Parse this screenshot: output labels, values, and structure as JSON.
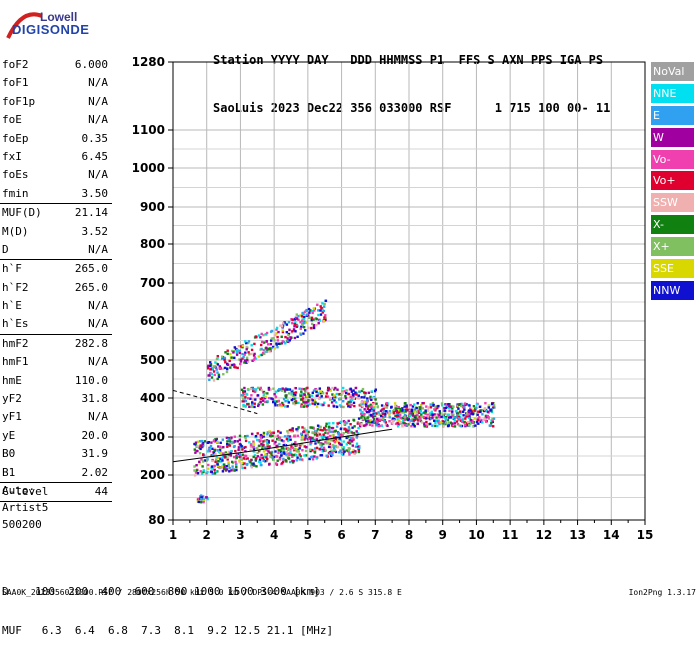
{
  "logo": {
    "line1": "Lowell",
    "line2": "DIGISONDE"
  },
  "header": {
    "line1": "Station YYYY DAY   DDD HHMMSS P1  FFS S AXN PPS IGA PS",
    "line2": "SaoLuis 2023 Dec22 356 033000 RSF      1 715 100 00- 11"
  },
  "params": [
    {
      "name": "foF2",
      "value": "6.000"
    },
    {
      "name": "foF1",
      "value": "N/A"
    },
    {
      "name": "foF1p",
      "value": "N/A"
    },
    {
      "name": "foE",
      "value": "N/A"
    },
    {
      "name": "foEp",
      "value": "0.35"
    },
    {
      "name": "fxI",
      "value": "6.45"
    },
    {
      "name": "foEs",
      "value": "N/A"
    },
    {
      "name": "fmin",
      "value": "3.50",
      "sep": true
    },
    {
      "name": "MUF(D)",
      "value": "21.14"
    },
    {
      "name": "M(D)",
      "value": "3.52"
    },
    {
      "name": "D",
      "value": "N/A",
      "sep": true
    },
    {
      "name": "h`F",
      "value": "265.0"
    },
    {
      "name": "h`F2",
      "value": "265.0"
    },
    {
      "name": "h`E",
      "value": "N/A"
    },
    {
      "name": "h`Es",
      "value": "N/A",
      "sep": true
    },
    {
      "name": "hmF2",
      "value": "282.8"
    },
    {
      "name": "hmF1",
      "value": "N/A"
    },
    {
      "name": "hmE",
      "value": "110.0"
    },
    {
      "name": "yF2",
      "value": "31.8"
    },
    {
      "name": "yF1",
      "value": "N/A"
    },
    {
      "name": "yE",
      "value": "20.0"
    },
    {
      "name": "B0",
      "value": "31.9"
    },
    {
      "name": "B1",
      "value": "2.02",
      "sep": true
    },
    {
      "name": "C-level",
      "value": "44",
      "sep": true
    }
  ],
  "auto": [
    "Auto:",
    "Artist5",
    "500200"
  ],
  "legend": [
    {
      "label": "NoVal",
      "color": "#a0a0a0"
    },
    {
      "label": "NNE",
      "color": "#00e0f0"
    },
    {
      "label": "E",
      "color": "#30a0f0"
    },
    {
      "label": "W",
      "color": "#a000a0"
    },
    {
      "label": "Vo-",
      "color": "#f040b0"
    },
    {
      "label": "Vo+",
      "color": "#e00030"
    },
    {
      "label": "SSW",
      "color": "#f0b0b0"
    },
    {
      "label": "X-",
      "color": "#108010"
    },
    {
      "label": "X+",
      "color": "#80c060"
    },
    {
      "label": "SSE",
      "color": "#d8d800"
    },
    {
      "label": "NNW",
      "color": "#1010d0"
    }
  ],
  "chart_data": {
    "type": "scatter",
    "title": "",
    "xlabel": "",
    "ylabel": "",
    "xlim": [
      1,
      15
    ],
    "ylim": [
      80,
      1280
    ],
    "x_ticks": [
      "1",
      "2",
      "3",
      "4",
      "5",
      "6",
      "7",
      "8",
      "9",
      "10",
      "11",
      "12",
      "13",
      "14",
      "15"
    ],
    "y_ticks": [
      "80",
      "200",
      "300",
      "400",
      "500",
      "600",
      "700",
      "800",
      "900",
      "1000",
      "1100",
      "1280"
    ],
    "y_tick_values": [
      80,
      200,
      300,
      400,
      500,
      600,
      700,
      800,
      900,
      1000,
      1100,
      1280
    ],
    "y_scale": "quasi-log",
    "grid": true,
    "trace_clusters": [
      {
        "name": "F trace (O/X echoes)",
        "f_from": 1.6,
        "f_to": 10.5,
        "h_from": 230,
        "h_to": 340
      },
      {
        "name": "upper spread",
        "f_from": 3.0,
        "f_to": 7.0,
        "h_from": 380,
        "h_to": 430
      },
      {
        "name": "multiple hop",
        "f_from": 2.0,
        "f_to": 5.5,
        "h_from": 460,
        "h_to": 620
      },
      {
        "name": "low-height echoes",
        "f_from": 1.7,
        "f_to": 2.0,
        "h_from": 130,
        "h_to": 150
      }
    ],
    "profile_line": [
      [
        1.0,
        235
      ],
      [
        3.5,
        265
      ],
      [
        6.0,
        300
      ],
      [
        7.5,
        320
      ]
    ],
    "profile_line_dashed": [
      [
        1.0,
        420
      ],
      [
        2.5,
        385
      ],
      [
        3.5,
        360
      ]
    ]
  },
  "bottom": {
    "d_line": "D    100  200  400  600  800 1000 1500 3000 [km]",
    "muf_line": "MUF   6.3  6.4  6.8  7.3  8.1  9.2 12.5 21.1 [MHz]"
  },
  "footer": "SAA0K_2023356033000.RSF / 280fx256h 50 kHz 5.0 km / DPS-4 SAA0K 903 / 2.6 S 315.8 E",
  "version": "Ion2Png 1.3.17"
}
